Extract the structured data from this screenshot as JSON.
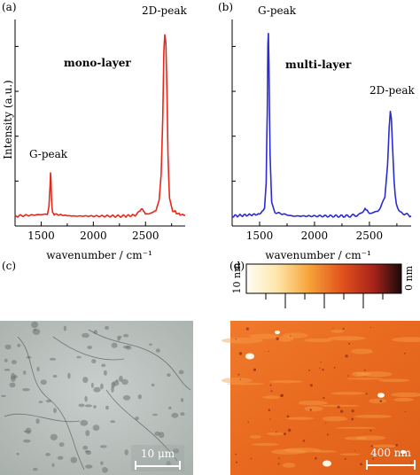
{
  "panels": {
    "a": {
      "label": "(a)",
      "annotation": "mono-layer",
      "peak_labels": [
        "G-peak",
        "2D-peak"
      ],
      "ylabel": "Intensity (a.u.)",
      "xlabel": "wavenumber  / cm⁻¹",
      "color": "#e8271b"
    },
    "b": {
      "label": "(b)",
      "annotation": "multi-layer",
      "peak_labels": [
        "G-peak",
        "2D-peak"
      ],
      "xlabel": "wavenumber  / cm⁻¹",
      "color": "#2b2bd4"
    },
    "c": {
      "label": "(c)",
      "scalebar": "10 μm"
    },
    "d": {
      "label": "(d)",
      "colorbar_max": "10 nm",
      "colorbar_min": "0 nm",
      "scalebar": "400 nm"
    }
  },
  "chart_data": [
    {
      "type": "line",
      "panel": "a",
      "title": "",
      "annotation": "mono-layer",
      "xlabel": "wavenumber  / cm⁻¹",
      "ylabel": "Intensity (a.u.)",
      "xlim": [
        1250,
        2880
      ],
      "ylim": [
        0,
        1.08
      ],
      "xticks": [
        1500,
        2000,
        2500
      ],
      "yticks_labeled": false,
      "grid": false,
      "series": [
        {
          "x": [
            1250,
            1560,
            1575,
            1585,
            1590,
            1595,
            1600,
            1610,
            1625,
            1800,
            2300,
            2400,
            2440,
            2460,
            2480,
            2500,
            2550,
            2600,
            2630,
            2650,
            2665,
            2675,
            2685,
            2695,
            2705,
            2715,
            2730,
            2760,
            2820,
            2880
          ],
          "y": [
            0.02,
            0.03,
            0.08,
            0.18,
            0.26,
            0.2,
            0.1,
            0.04,
            0.03,
            0.02,
            0.02,
            0.025,
            0.04,
            0.06,
            0.05,
            0.03,
            0.035,
            0.05,
            0.1,
            0.25,
            0.55,
            0.9,
            1.0,
            0.95,
            0.7,
            0.35,
            0.12,
            0.05,
            0.03,
            0.025
          ]
        }
      ],
      "annotations": [
        {
          "text": "G-peak",
          "x": 1590,
          "y": 0.26
        },
        {
          "text": "2D-peak",
          "x": 2685,
          "y": 1.0
        }
      ]
    },
    {
      "type": "line",
      "panel": "b",
      "title": "",
      "annotation": "multi-layer",
      "xlabel": "wavenumber  / cm⁻¹",
      "ylabel": "",
      "xlim": [
        1250,
        2880
      ],
      "ylim": [
        0,
        1.08
      ],
      "xticks": [
        1500,
        2000,
        2500
      ],
      "yticks_labeled": false,
      "grid": false,
      "series": [
        {
          "x": [
            1250,
            1500,
            1545,
            1560,
            1570,
            1575,
            1580,
            1585,
            1595,
            1610,
            1640,
            1800,
            2300,
            2400,
            2440,
            2460,
            2480,
            2500,
            2550,
            2600,
            2640,
            2665,
            2680,
            2690,
            2700,
            2710,
            2725,
            2745,
            2780,
            2830,
            2880
          ],
          "y": [
            0.02,
            0.03,
            0.06,
            0.2,
            0.6,
            0.95,
            1.0,
            0.85,
            0.35,
            0.1,
            0.04,
            0.02,
            0.02,
            0.025,
            0.04,
            0.06,
            0.05,
            0.035,
            0.04,
            0.06,
            0.12,
            0.3,
            0.5,
            0.58,
            0.55,
            0.4,
            0.2,
            0.08,
            0.04,
            0.03,
            0.02
          ]
        }
      ],
      "annotations": [
        {
          "text": "G-peak",
          "x": 1580,
          "y": 1.0
        },
        {
          "text": "2D-peak",
          "x": 2690,
          "y": 0.58
        }
      ]
    }
  ]
}
